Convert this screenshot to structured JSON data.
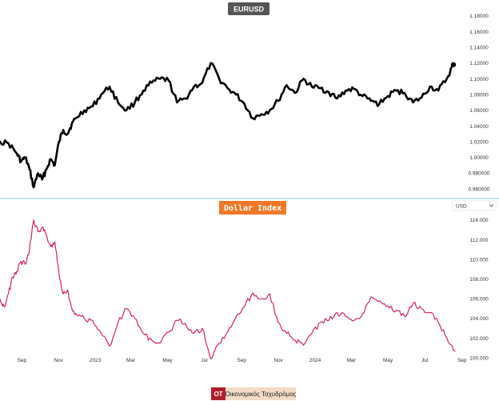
{
  "chart_data": [
    {
      "type": "line",
      "title": "EURUSD",
      "xlabel": "",
      "ylabel": "",
      "ylim": [
        0.955,
        1.19
      ],
      "yticks": [
        "0.960000",
        "0.980000",
        "1.00000",
        "1.02000",
        "1.04000",
        "1.06000",
        "1.08000",
        "1.10000",
        "1.12000",
        "1.14000",
        "1.16000",
        "1.18000"
      ],
      "x": [
        "2022-08-01",
        "2022-08-15",
        "2022-08-29",
        "2022-09-05",
        "2022-09-12",
        "2022-09-19",
        "2022-09-26",
        "2022-10-03",
        "2022-10-10",
        "2022-10-17",
        "2022-10-24",
        "2022-10-31",
        "2022-11-07",
        "2022-11-14",
        "2022-11-21",
        "2022-11-28",
        "2022-12-05",
        "2022-12-19",
        "2023-01-02",
        "2023-01-16",
        "2023-01-30",
        "2023-02-13",
        "2023-02-27",
        "2023-03-13",
        "2023-03-27",
        "2023-04-10",
        "2023-04-24",
        "2023-05-08",
        "2023-05-22",
        "2023-06-05",
        "2023-06-19",
        "2023-07-03",
        "2023-07-17",
        "2023-07-31",
        "2023-08-14",
        "2023-08-28",
        "2023-09-11",
        "2023-09-25",
        "2023-10-09",
        "2023-10-23",
        "2023-11-06",
        "2023-11-20",
        "2023-12-04",
        "2023-12-18",
        "2024-01-01",
        "2024-01-15",
        "2024-01-29",
        "2024-02-12",
        "2024-02-26",
        "2024-03-11",
        "2024-03-25",
        "2024-04-08",
        "2024-04-22",
        "2024-05-06",
        "2024-05-20",
        "2024-06-03",
        "2024-06-17",
        "2024-07-01",
        "2024-07-15",
        "2024-07-29",
        "2024-08-12",
        "2024-08-23"
      ],
      "values": [
        1.02,
        1.018,
        1.005,
        0.995,
        1.0,
        0.985,
        0.962,
        0.98,
        0.972,
        0.985,
        0.998,
        0.99,
        1.02,
        1.035,
        1.03,
        1.042,
        1.05,
        1.06,
        1.065,
        1.08,
        1.09,
        1.07,
        1.06,
        1.07,
        1.085,
        1.095,
        1.1,
        1.098,
        1.07,
        1.075,
        1.09,
        1.095,
        1.12,
        1.1,
        1.088,
        1.08,
        1.068,
        1.05,
        1.055,
        1.06,
        1.072,
        1.092,
        1.082,
        1.1,
        1.09,
        1.088,
        1.083,
        1.075,
        1.085,
        1.087,
        1.078,
        1.072,
        1.068,
        1.078,
        1.085,
        1.082,
        1.07,
        1.076,
        1.09,
        1.085,
        1.1,
        1.118
      ],
      "color": "#000000"
    },
    {
      "type": "line",
      "title": "Dollar Index",
      "xlabel": "",
      "ylabel": "",
      "ylim": [
        99.2,
        114.8
      ],
      "yticks": [
        "100.000",
        "102.000",
        "104.000",
        "106.000",
        "108.000",
        "110.000",
        "112.000",
        "114.000"
      ],
      "currency_label": "USD",
      "x": [
        "2022-08-01",
        "2022-08-08",
        "2022-08-15",
        "2022-08-22",
        "2022-08-29",
        "2022-09-05",
        "2022-09-12",
        "2022-09-19",
        "2022-09-26",
        "2022-10-03",
        "2022-10-10",
        "2022-10-17",
        "2022-10-24",
        "2022-10-31",
        "2022-11-07",
        "2022-11-14",
        "2022-11-21",
        "2022-11-28",
        "2022-12-05",
        "2022-12-19",
        "2023-01-02",
        "2023-01-16",
        "2023-01-30",
        "2023-02-13",
        "2023-02-27",
        "2023-03-13",
        "2023-03-27",
        "2023-04-10",
        "2023-04-24",
        "2023-05-08",
        "2023-05-22",
        "2023-06-05",
        "2023-06-19",
        "2023-07-03",
        "2023-07-17",
        "2023-07-31",
        "2023-08-14",
        "2023-08-28",
        "2023-09-11",
        "2023-09-25",
        "2023-10-09",
        "2023-10-23",
        "2023-11-06",
        "2023-11-20",
        "2023-12-04",
        "2023-12-18",
        "2024-01-01",
        "2024-01-15",
        "2024-01-29",
        "2024-02-12",
        "2024-02-26",
        "2024-03-11",
        "2024-03-25",
        "2024-04-08",
        "2024-04-22",
        "2024-05-06",
        "2024-05-20",
        "2024-06-03",
        "2024-06-17",
        "2024-07-01",
        "2024-07-15",
        "2024-07-29",
        "2024-08-12",
        "2024-08-26"
      ],
      "values": [
        106.0,
        105.2,
        106.5,
        108.2,
        108.8,
        109.8,
        109.5,
        111.0,
        114.0,
        112.8,
        113.2,
        112.5,
        111.3,
        111.8,
        108.5,
        106.5,
        106.9,
        105.1,
        104.5,
        104.0,
        103.8,
        102.5,
        101.2,
        103.6,
        105.0,
        104.0,
        102.5,
        101.8,
        101.5,
        102.6,
        103.8,
        103.5,
        102.5,
        103.0,
        99.9,
        101.5,
        102.6,
        104.2,
        105.2,
        106.6,
        106.0,
        106.5,
        103.6,
        102.5,
        101.8,
        101.3,
        102.5,
        103.6,
        103.8,
        104.6,
        104.2,
        103.8,
        104.5,
        106.2,
        105.8,
        105.3,
        104.8,
        104.2,
        105.5,
        105.0,
        104.6,
        103.6,
        102.0,
        100.7
      ],
      "color": "#d0236a"
    }
  ],
  "x_axis_ticks": [
    "Sep",
    "Nov",
    "2023",
    "Mar",
    "May",
    "Jul",
    "Sep",
    "Nov",
    "2024",
    "Mar",
    "May",
    "Jul",
    "Sep"
  ],
  "title_colors": {
    "eurusd_bg": "#555555",
    "dollar_index_bg": "#f07828"
  },
  "divider_color": "#7ecfd8",
  "branding": {
    "logo_text": "OT",
    "name": "Οικονομικός Ταχυδρόμος",
    "logo_bg": "#b01e2e",
    "name_bg": "#f2dcc6"
  }
}
